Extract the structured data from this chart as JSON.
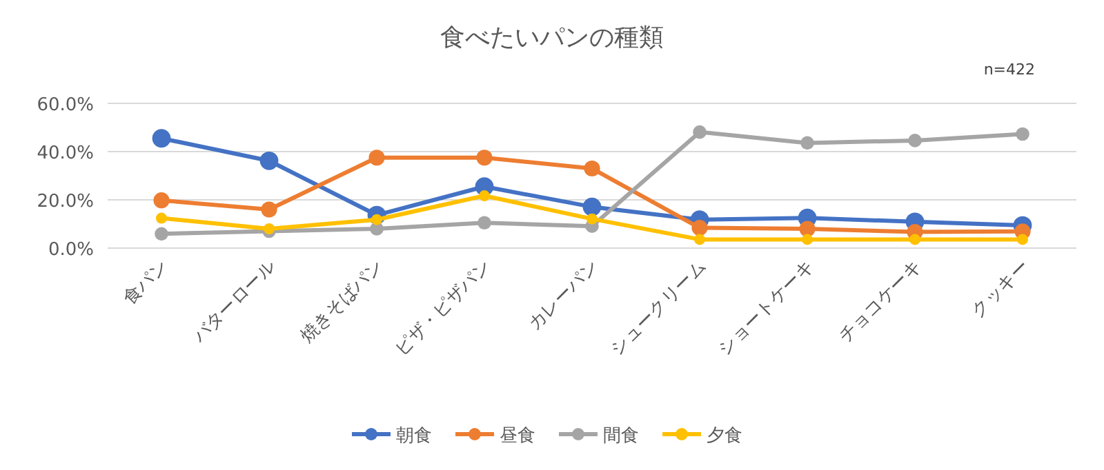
{
  "chart_data": {
    "type": "line",
    "title": "食べたいパンの種類",
    "annotations": [
      "n=422"
    ],
    "categories": [
      "食パン",
      "バターロール",
      "焼きそばパン",
      "ピザ・ピザパン",
      "カレーパン",
      "シュークリーム",
      "ショートケーキ",
      "チョコケーキ",
      "クッキー"
    ],
    "series": [
      {
        "name": "朝食",
        "color": "#4472c4",
        "values": [
          45.5,
          36.2,
          13.7,
          25.5,
          17.1,
          11.8,
          12.5,
          10.9,
          9.4
        ]
      },
      {
        "name": "昼食",
        "color": "#ed7d31",
        "values": [
          19.8,
          16,
          37.5,
          37.5,
          33,
          8.4,
          8,
          6.7,
          6.9
        ]
      },
      {
        "name": "間食",
        "color": "#a5a5a5",
        "values": [
          5.9,
          7,
          8,
          10.5,
          9.1,
          48.1,
          43.6,
          44.6,
          47.3
        ]
      },
      {
        "name": "夕食",
        "color": "#ffc000",
        "values": [
          12.4,
          8,
          11.8,
          21.7,
          12.1,
          3.6,
          3.6,
          3.6,
          3.6
        ]
      }
    ],
    "ylim": [
      0,
      60
    ],
    "yticks": [
      {
        "value": 0,
        "label": "0.0%"
      },
      {
        "value": 20,
        "label": "20.0%"
      },
      {
        "value": 40,
        "label": "40.0%"
      },
      {
        "value": 60,
        "label": "60.0%"
      }
    ],
    "grid": "y",
    "legend": "bottom",
    "marker": "circle",
    "line_style": "solid"
  }
}
